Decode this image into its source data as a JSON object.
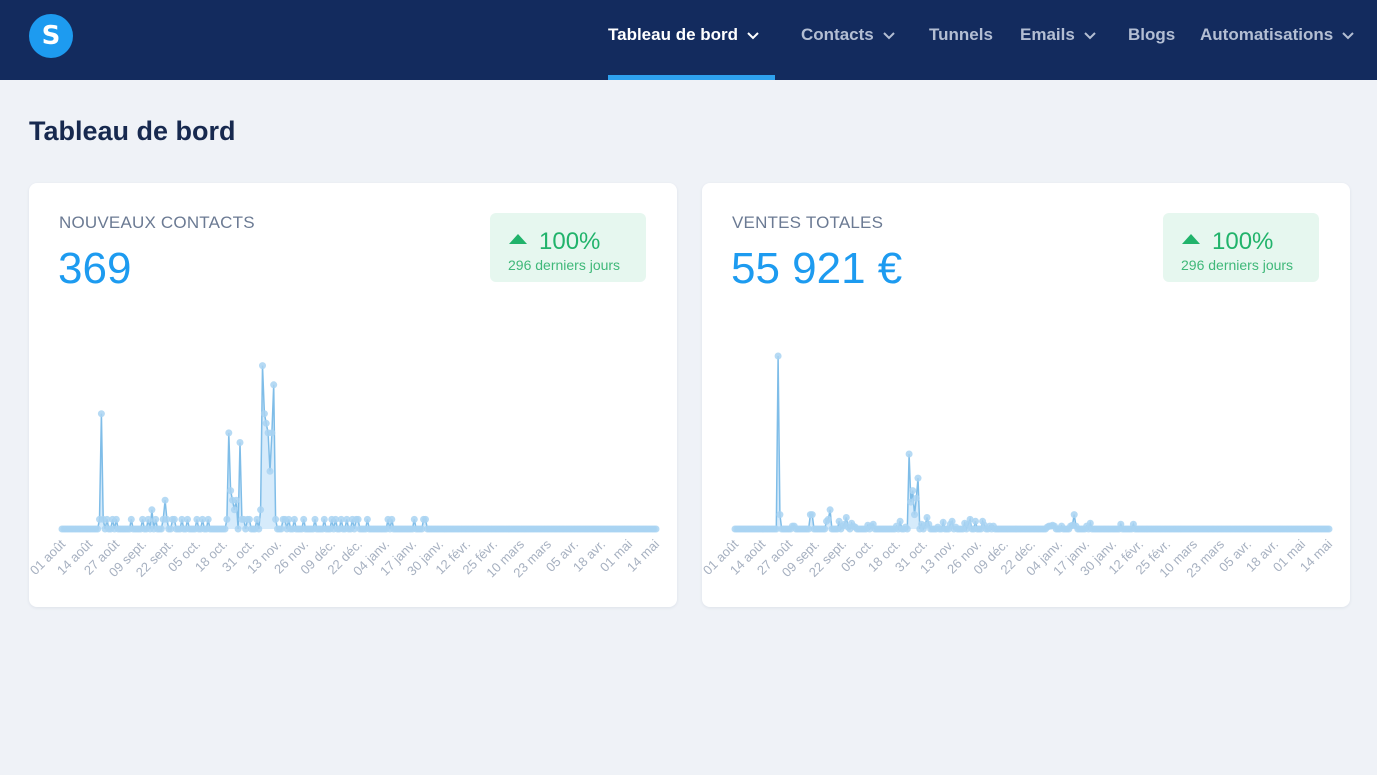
{
  "app": {
    "logo_letter": "S"
  },
  "nav": {
    "items": [
      {
        "label": "Tableau de bord",
        "dropdown": true,
        "active": true
      },
      {
        "label": "Contacts",
        "dropdown": true,
        "active": false
      },
      {
        "label": "Tunnels",
        "dropdown": false,
        "active": false
      },
      {
        "label": "Emails",
        "dropdown": true,
        "active": false
      },
      {
        "label": "Blogs",
        "dropdown": false,
        "active": false
      },
      {
        "label": "Automatisations",
        "dropdown": true,
        "active": false
      }
    ]
  },
  "page": {
    "title": "Tableau de bord"
  },
  "colors": {
    "topbar": "#132b5e",
    "accent": "#1d9bf0",
    "positive": "#21b36b",
    "badge_bg": "#e6f7ef",
    "line": "#7fbde8",
    "fill": "#d6ebfb"
  },
  "cards": [
    {
      "label": "NOUVEAUX CONTACTS",
      "value": "369",
      "badge": {
        "icon": "arrow-up-icon",
        "percent": "100%",
        "period": "296 derniers jours"
      }
    },
    {
      "label": "VENTES TOTALES",
      "value": "55 921 €",
      "badge": {
        "icon": "arrow-up-icon",
        "percent": "100%",
        "period": "296 derniers jours"
      }
    }
  ],
  "chart_data": [
    {
      "type": "area",
      "title": "",
      "xlabel": "",
      "ylabel": "",
      "x_ticks": [
        "01 août",
        "14 août",
        "27 août",
        "09 sept.",
        "22 sept.",
        "05 oct.",
        "18 oct.",
        "31 oct.",
        "13 nov.",
        "26 nov.",
        "09 déc.",
        "22 déc.",
        "04 janv.",
        "17 janv.",
        "30 janv.",
        "12 févr.",
        "25 févr.",
        "10 mars",
        "23 mars",
        "05 avr.",
        "18 avr.",
        "01 mai",
        "14 mai"
      ],
      "series": [
        {
          "values": [
            0,
            0,
            0,
            0,
            0,
            0,
            0,
            0,
            0,
            0,
            0,
            0,
            0,
            0,
            0,
            0,
            0,
            0,
            0,
            0,
            1,
            12,
            1,
            0,
            1,
            0,
            0,
            1,
            0,
            1,
            0,
            0,
            0,
            0,
            0,
            0,
            0,
            1,
            0,
            0,
            0,
            0,
            0,
            1,
            0,
            0,
            1,
            0,
            2,
            0,
            1,
            0,
            0,
            0,
            1,
            3,
            1,
            0,
            0,
            1,
            1,
            0,
            0,
            0,
            1,
            0,
            0,
            1,
            0,
            0,
            0,
            0,
            1,
            0,
            0,
            1,
            0,
            0,
            1,
            0,
            0,
            0,
            0,
            0,
            0,
            0,
            0,
            0,
            1,
            10,
            4,
            3,
            2,
            3,
            0,
            9,
            1,
            1,
            0,
            1,
            1,
            0,
            0,
            0,
            1,
            0,
            2,
            17,
            12,
            11,
            10,
            6,
            10,
            15,
            1,
            0,
            0,
            0,
            1,
            1,
            0,
            1,
            0,
            0,
            1,
            0,
            0,
            0,
            0,
            1,
            0,
            0,
            0,
            0,
            0,
            1,
            0,
            0,
            0,
            0,
            1,
            0,
            0,
            0,
            1,
            0,
            1,
            0,
            0,
            1,
            0,
            0,
            1,
            0,
            0,
            1,
            0,
            1,
            1,
            0,
            0,
            0,
            0,
            1,
            0,
            0,
            0,
            0,
            0,
            0,
            0,
            0,
            0,
            0,
            1,
            0,
            1,
            0,
            0,
            0,
            0,
            0,
            0,
            0,
            0,
            0,
            0,
            0,
            1,
            0,
            0,
            0,
            0,
            1,
            1,
            0,
            0,
            0,
            0,
            0,
            0,
            0,
            0,
            0,
            0,
            0,
            0,
            0,
            0,
            0,
            0,
            0,
            0,
            0,
            0,
            0,
            0,
            0,
            0,
            0,
            0,
            0,
            0,
            0,
            0,
            0,
            0,
            0,
            0,
            0,
            0,
            0,
            0,
            0,
            0,
            0,
            0,
            0,
            0,
            0,
            0,
            0,
            0,
            0,
            0,
            0,
            0,
            0,
            0,
            0,
            0,
            0,
            0,
            0,
            0,
            0,
            0,
            0,
            0,
            0,
            0,
            0,
            0,
            0,
            0,
            0,
            0,
            0,
            0,
            0,
            0,
            0,
            0,
            0,
            0,
            0,
            0,
            0,
            0,
            0,
            0,
            0,
            0,
            0,
            0,
            0,
            0,
            0,
            0,
            0,
            0,
            0,
            0,
            0,
            0,
            0,
            0,
            0,
            0,
            0,
            0,
            0,
            0,
            0,
            0,
            0,
            0,
            0,
            0,
            0,
            0,
            0,
            0,
            0,
            0,
            0,
            0,
            0
          ]
        }
      ],
      "ylim": [
        0,
        18
      ]
    },
    {
      "type": "area",
      "title": "",
      "xlabel": "",
      "ylabel": "",
      "x_ticks": [
        "01 août",
        "14 août",
        "27 août",
        "09 sept.",
        "22 sept.",
        "05 oct.",
        "18 oct.",
        "31 oct.",
        "13 nov.",
        "26 nov.",
        "09 déc.",
        "22 déc.",
        "04 janv.",
        "17 janv.",
        "30 janv.",
        "12 févr.",
        "25 févr.",
        "10 mars",
        "23 mars",
        "05 avr.",
        "18 avr.",
        "01 mai",
        "14 mai"
      ],
      "series": [
        {
          "values": [
            0,
            0,
            0,
            0,
            0,
            0,
            0,
            0,
            0,
            0,
            0,
            0,
            0,
            0,
            0,
            0,
            0,
            0,
            0,
            0,
            0,
            0,
            0,
            0,
            18,
            1.5,
            0,
            0,
            0,
            0,
            0,
            0,
            0.3,
            0.3,
            0,
            0,
            0,
            0,
            0,
            0,
            0,
            0,
            1.5,
            1.5,
            0,
            0,
            0,
            0,
            0,
            0,
            0,
            0.8,
            1,
            2,
            0,
            0,
            0,
            0,
            0.8,
            0,
            0.3,
            0.5,
            1.2,
            0.2,
            0,
            0.6,
            0.3,
            0.2,
            0,
            0,
            0,
            0,
            0,
            0,
            0.4,
            0,
            0.3,
            0.5,
            0,
            0,
            0,
            0,
            0,
            0,
            0,
            0,
            0,
            0,
            0,
            0,
            0.3,
            0,
            0.8,
            0,
            0,
            0.2,
            0,
            7.8,
            2.8,
            4,
            1.5,
            3.2,
            5.3,
            0,
            0.5,
            0,
            0.4,
            1.2,
            0.5,
            0,
            0,
            0,
            0,
            0.2,
            0,
            0,
            0.7,
            0,
            0,
            0,
            0.5,
            0.8,
            0,
            0.2,
            0,
            0,
            0,
            0,
            0.6,
            0,
            0.5,
            1,
            0,
            0,
            0.8,
            0,
            0,
            0,
            0.8,
            0.4,
            0,
            0,
            0.3,
            0,
            0.3,
            0,
            0,
            0,
            0,
            0,
            0,
            0,
            0,
            0,
            0,
            0,
            0,
            0,
            0,
            0,
            0,
            0,
            0,
            0,
            0,
            0,
            0,
            0,
            0,
            0,
            0,
            0,
            0,
            0,
            0.2,
            0.3,
            0.3,
            0.4,
            0.3,
            0,
            0,
            0,
            0.3,
            0,
            0,
            0,
            0,
            0.3,
            0.4,
            1.5,
            0.3,
            0,
            0,
            0,
            0,
            0,
            0.3,
            0,
            0.6,
            0,
            0,
            0,
            0,
            0,
            0,
            0,
            0,
            0,
            0,
            0,
            0,
            0,
            0,
            0,
            0,
            0.5,
            0,
            0,
            0,
            0,
            0,
            0,
            0.5,
            0,
            0,
            0,
            0,
            0,
            0,
            0,
            0,
            0,
            0,
            0,
            0,
            0,
            0,
            0,
            0,
            0,
            0,
            0,
            0,
            0,
            0,
            0,
            0,
            0,
            0,
            0,
            0,
            0,
            0,
            0,
            0,
            0,
            0,
            0,
            0,
            0,
            0,
            0,
            0,
            0,
            0,
            0,
            0,
            0,
            0,
            0,
            0,
            0,
            0,
            0,
            0,
            0,
            0,
            0,
            0,
            0,
            0,
            0,
            0,
            0,
            0,
            0,
            0,
            0,
            0,
            0,
            0,
            0,
            0,
            0,
            0,
            0,
            0,
            0,
            0,
            0,
            0,
            0,
            0,
            0,
            0,
            0,
            0,
            0,
            0,
            0,
            0,
            0,
            0,
            0,
            0,
            0,
            0,
            0,
            0,
            0,
            0,
            0,
            0,
            0,
            0,
            0,
            0,
            0,
            0,
            0,
            0,
            0
          ]
        }
      ],
      "ylim": [
        0,
        18
      ]
    }
  ]
}
